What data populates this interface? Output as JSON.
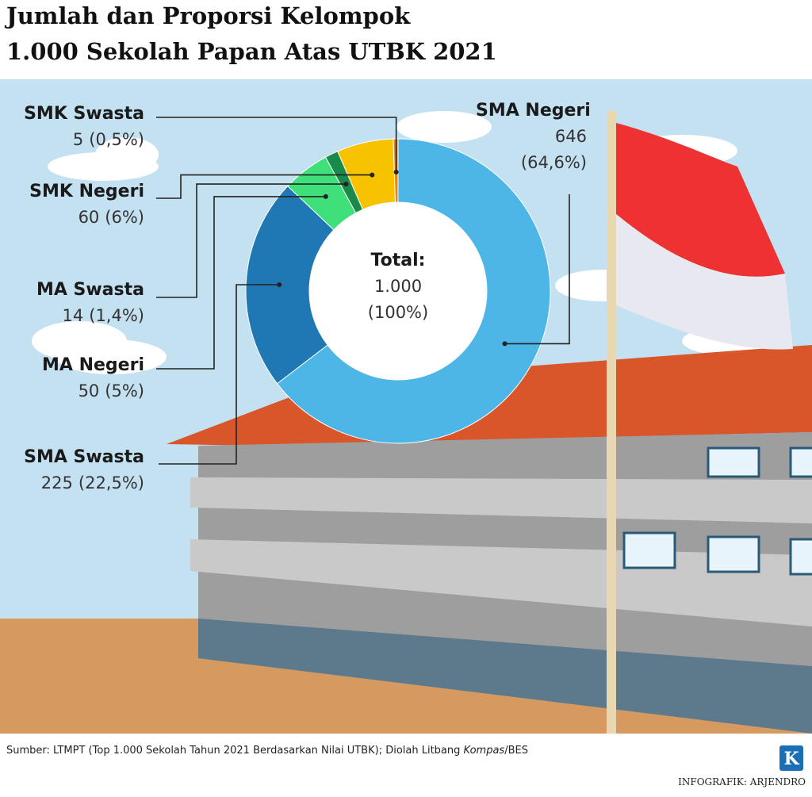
{
  "chart_data": {
    "type": "donut",
    "title_lines": [
      "Jumlah dan Proporsi Kelompok",
      "1.000 Sekolah Papan Atas UTBK 2021"
    ],
    "categories": [
      "SMA Negeri",
      "SMA Swasta",
      "MA Negeri",
      "MA Swasta",
      "SMK Negeri",
      "SMK Swasta"
    ],
    "values": [
      646,
      225,
      50,
      14,
      60,
      5
    ],
    "percent_labels": [
      "(64,6%)",
      "(22,5%)",
      "(5%)",
      "(1,4%)",
      "(6%)",
      "(0,5%)"
    ],
    "colors": [
      "#4db6e6",
      "#1f78b4",
      "#3fe07a",
      "#1a8a4a",
      "#f7c300",
      "#e8861a"
    ],
    "center_label": "Total:",
    "center_value": "1.000",
    "center_percent": "(100%)",
    "source_prefix": "Sumber: LTMPT (Top 1.000 Sekolah Tahun 2021 Berdasarkan Nilai UTBK); Diolah Litbang ",
    "source_italic": "Kompas",
    "source_suffix": "/BES",
    "credit": "INFOGRAFIK: ARJENDRO",
    "logo": "K"
  }
}
